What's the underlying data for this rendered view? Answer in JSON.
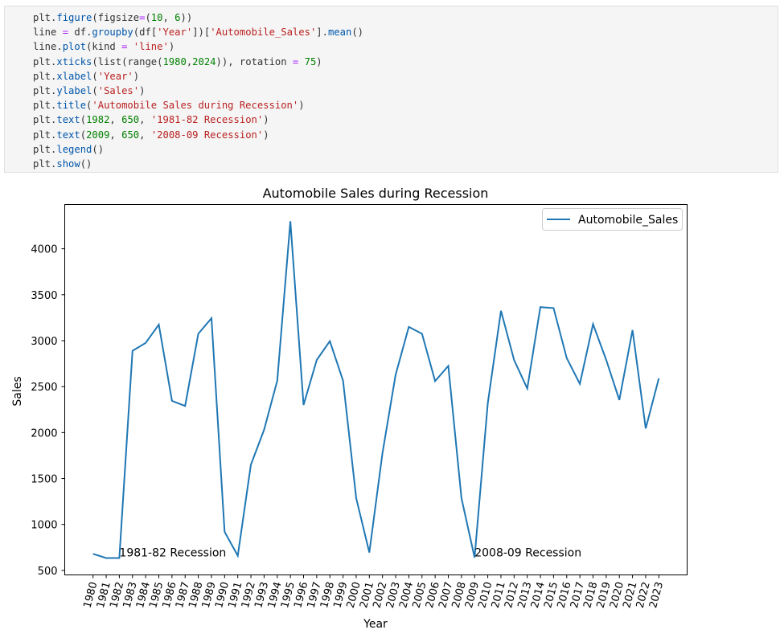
{
  "code": {
    "lines": [
      [
        {
          "t": "plt",
          "c": "var"
        },
        {
          "t": ".",
          "c": "p"
        },
        {
          "t": "figure",
          "c": "fn"
        },
        {
          "t": "(",
          "c": "p"
        },
        {
          "t": "figsize",
          "c": "var"
        },
        {
          "t": "=",
          "c": "op"
        },
        {
          "t": "(",
          "c": "p"
        },
        {
          "t": "10",
          "c": "num"
        },
        {
          "t": ", ",
          "c": "p"
        },
        {
          "t": "6",
          "c": "num"
        },
        {
          "t": "))",
          "c": "p"
        }
      ],
      [
        {
          "t": "line",
          "c": "var"
        },
        {
          "t": " = ",
          "c": "op"
        },
        {
          "t": "df",
          "c": "var"
        },
        {
          "t": ".",
          "c": "p"
        },
        {
          "t": "groupby",
          "c": "fn"
        },
        {
          "t": "(",
          "c": "p"
        },
        {
          "t": "df",
          "c": "var"
        },
        {
          "t": "[",
          "c": "p"
        },
        {
          "t": "'Year'",
          "c": "str"
        },
        {
          "t": "])[",
          "c": "p"
        },
        {
          "t": "'Automobile_Sales'",
          "c": "str"
        },
        {
          "t": "].",
          "c": "p"
        },
        {
          "t": "mean",
          "c": "fn"
        },
        {
          "t": "()",
          "c": "p"
        }
      ],
      [
        {
          "t": "line",
          "c": "var"
        },
        {
          "t": ".",
          "c": "p"
        },
        {
          "t": "plot",
          "c": "fn"
        },
        {
          "t": "(",
          "c": "p"
        },
        {
          "t": "kind",
          "c": "var"
        },
        {
          "t": " = ",
          "c": "op"
        },
        {
          "t": "'line'",
          "c": "str"
        },
        {
          "t": ")",
          "c": "p"
        }
      ],
      [
        {
          "t": "plt",
          "c": "var"
        },
        {
          "t": ".",
          "c": "p"
        },
        {
          "t": "xticks",
          "c": "fn"
        },
        {
          "t": "(",
          "c": "p"
        },
        {
          "t": "list",
          "c": "var"
        },
        {
          "t": "(",
          "c": "p"
        },
        {
          "t": "range",
          "c": "var"
        },
        {
          "t": "(",
          "c": "p"
        },
        {
          "t": "1980",
          "c": "num"
        },
        {
          "t": ",",
          "c": "p"
        },
        {
          "t": "2024",
          "c": "num"
        },
        {
          "t": ")), ",
          "c": "p"
        },
        {
          "t": "rotation",
          "c": "var"
        },
        {
          "t": " = ",
          "c": "op"
        },
        {
          "t": "75",
          "c": "num"
        },
        {
          "t": ")",
          "c": "p"
        }
      ],
      [
        {
          "t": "plt",
          "c": "var"
        },
        {
          "t": ".",
          "c": "p"
        },
        {
          "t": "xlabel",
          "c": "fn"
        },
        {
          "t": "(",
          "c": "p"
        },
        {
          "t": "'Year'",
          "c": "str"
        },
        {
          "t": ")",
          "c": "p"
        }
      ],
      [
        {
          "t": "plt",
          "c": "var"
        },
        {
          "t": ".",
          "c": "p"
        },
        {
          "t": "ylabel",
          "c": "fn"
        },
        {
          "t": "(",
          "c": "p"
        },
        {
          "t": "'Sales'",
          "c": "str"
        },
        {
          "t": ")",
          "c": "p"
        }
      ],
      [
        {
          "t": "plt",
          "c": "var"
        },
        {
          "t": ".",
          "c": "p"
        },
        {
          "t": "title",
          "c": "fn"
        },
        {
          "t": "(",
          "c": "p"
        },
        {
          "t": "'Automobile Sales during Recession'",
          "c": "str"
        },
        {
          "t": ")",
          "c": "p"
        }
      ],
      [
        {
          "t": "plt",
          "c": "var"
        },
        {
          "t": ".",
          "c": "p"
        },
        {
          "t": "text",
          "c": "fn"
        },
        {
          "t": "(",
          "c": "p"
        },
        {
          "t": "1982",
          "c": "num"
        },
        {
          "t": ", ",
          "c": "p"
        },
        {
          "t": "650",
          "c": "num"
        },
        {
          "t": ", ",
          "c": "p"
        },
        {
          "t": "'1981-82 Recession'",
          "c": "str"
        },
        {
          "t": ")",
          "c": "p"
        }
      ],
      [
        {
          "t": "plt",
          "c": "var"
        },
        {
          "t": ".",
          "c": "p"
        },
        {
          "t": "text",
          "c": "fn"
        },
        {
          "t": "(",
          "c": "p"
        },
        {
          "t": "2009",
          "c": "num"
        },
        {
          "t": ", ",
          "c": "p"
        },
        {
          "t": "650",
          "c": "num"
        },
        {
          "t": ", ",
          "c": "p"
        },
        {
          "t": "'2008-09 Recession'",
          "c": "str"
        },
        {
          "t": ")",
          "c": "p"
        }
      ],
      [
        {
          "t": "plt",
          "c": "var"
        },
        {
          "t": ".",
          "c": "p"
        },
        {
          "t": "legend",
          "c": "fn"
        },
        {
          "t": "()",
          "c": "p"
        }
      ],
      [
        {
          "t": "plt",
          "c": "var"
        },
        {
          "t": ".",
          "c": "p"
        },
        {
          "t": "show",
          "c": "fn"
        },
        {
          "t": "()",
          "c": "p"
        }
      ]
    ],
    "colors": {
      "var": "#333333",
      "op": "#aa22ff",
      "num": "#008000",
      "str": "#ba2121",
      "fn": "#0055aa",
      "p": "#333333"
    }
  },
  "chart_data": {
    "type": "line",
    "title": "Automobile Sales during Recession",
    "xlabel": "Year",
    "ylabel": "Sales",
    "x": [
      1980,
      1981,
      1982,
      1983,
      1984,
      1985,
      1986,
      1987,
      1988,
      1989,
      1990,
      1991,
      1992,
      1993,
      1994,
      1995,
      1996,
      1997,
      1998,
      1999,
      2000,
      2001,
      2002,
      2003,
      2004,
      2005,
      2006,
      2007,
      2008,
      2009,
      2010,
      2011,
      2012,
      2013,
      2014,
      2015,
      2016,
      2017,
      2018,
      2019,
      2020,
      2021,
      2022,
      2023
    ],
    "series": [
      {
        "name": "Automobile_Sales",
        "color": "#1f77b4",
        "values": [
          680,
          635,
          635,
          2890,
          2975,
          3175,
          2345,
          2290,
          3075,
          3245,
          920,
          660,
          1650,
          2030,
          2565,
          4300,
          2300,
          2790,
          2995,
          2565,
          1285,
          695,
          1780,
          2630,
          3150,
          3075,
          2560,
          2725,
          1285,
          640,
          2320,
          3325,
          2790,
          2480,
          3365,
          3355,
          2810,
          2530,
          3180,
          2790,
          2355,
          3115,
          2045,
          2590
        ]
      }
    ],
    "xticks": [
      1980,
      1981,
      1982,
      1983,
      1984,
      1985,
      1986,
      1987,
      1988,
      1989,
      1990,
      1991,
      1992,
      1993,
      1994,
      1995,
      1996,
      1997,
      1998,
      1999,
      2000,
      2001,
      2002,
      2003,
      2004,
      2005,
      2006,
      2007,
      2008,
      2009,
      2010,
      2011,
      2012,
      2013,
      2014,
      2015,
      2016,
      2017,
      2018,
      2019,
      2020,
      2021,
      2022,
      2023
    ],
    "xtick_rotation": 75,
    "yticks": [
      500,
      1000,
      1500,
      2000,
      2500,
      3000,
      3500,
      4000
    ],
    "xlim": [
      1977.85,
      2025.15
    ],
    "ylim": [
      451,
      4482
    ],
    "grid": false,
    "legend_position": "upper right",
    "annotations": [
      {
        "x": 1982,
        "y": 650,
        "text": "1981-82 Recession"
      },
      {
        "x": 2009,
        "y": 650,
        "text": "2008-09 Recession"
      }
    ]
  }
}
